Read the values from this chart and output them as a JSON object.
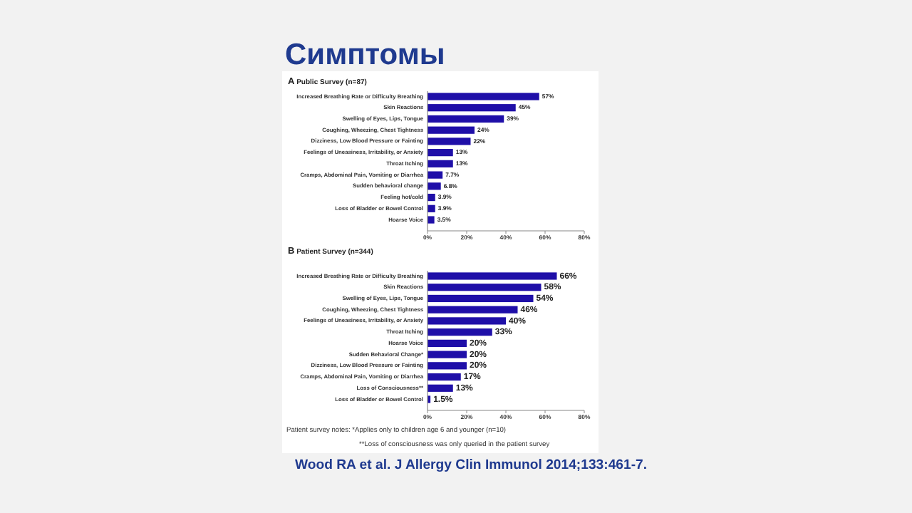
{
  "chart_data": [
    {
      "type": "bar",
      "orientation": "horizontal",
      "title": "Симптомы",
      "subtitle": "A Public Survey (n=87)",
      "color": "#1f0fa8",
      "categories": [
        "Increased Breathing Rate or Difficulty Breathing",
        "Skin Reactions",
        "Swelling of Eyes, Lips, Tongue",
        "Coughing, Wheezing, Chest Tightness",
        "Dizziness, Low Blood Pressure or Fainting",
        "Feelings of Uneasiness, Irritability, or Anxiety",
        "Throat Itching",
        "Cramps, Abdominal Pain, Vomiting or Diarrhea",
        "Sudden behavioral change",
        "Feeling hot/cold",
        "Loss of Bladder or Bowel Control",
        "Hoarse Voice"
      ],
      "values": [
        57,
        45,
        39,
        24,
        22,
        13,
        13,
        7.7,
        6.8,
        3.9,
        3.9,
        3.5
      ],
      "value_labels": [
        "57%",
        "45%",
        "39%",
        "24%",
        "22%",
        "13%",
        "13%",
        "7.7%",
        "6.8%",
        "3.9%",
        "3.9%",
        "3.5%"
      ],
      "xlim": [
        0,
        80
      ],
      "xticks": [
        {
          "value": 0,
          "label": "0%"
        },
        {
          "value": 20,
          "label": "20%"
        },
        {
          "value": 40,
          "label": "40%"
        },
        {
          "value": 60,
          "label": "60%"
        },
        {
          "value": 80,
          "label": "80%"
        }
      ]
    },
    {
      "type": "bar",
      "orientation": "horizontal",
      "subtitle": "B Patient Survey (n=344)",
      "color": "#1f0fa8",
      "categories": [
        "Increased Breathing Rate or Difficulty Breathing",
        "Skin Reactions",
        "Swelling of Eyes, Lips, Tongue",
        "Coughing, Wheezing, Chest Tightness",
        "Feelings of Uneasiness, Irritability, or Anxiety",
        "Throat Itching",
        "Hoarse Voice",
        "Sudden Behavioral Change*",
        "Dizziness, Low Blood Pressure or Fainting",
        "Cramps, Abdominal Pain, Vomiting or Diarrhea",
        "Loss of Consciousness**",
        "Loss of Bladder or Bowel Control"
      ],
      "values": [
        66,
        58,
        54,
        46,
        40,
        33,
        20,
        20,
        20,
        17,
        13,
        1.5
      ],
      "value_labels": [
        "66%",
        "58%",
        "54%",
        "46%",
        "40%",
        "33%",
        "20%",
        "20%",
        "20%",
        "17%",
        "13%",
        "1.5%"
      ],
      "xlim": [
        0,
        80
      ],
      "xticks": [
        {
          "value": 0,
          "label": "0%"
        },
        {
          "value": 20,
          "label": "20%"
        },
        {
          "value": 40,
          "label": "40%"
        },
        {
          "value": 60,
          "label": "60%"
        },
        {
          "value": 80,
          "label": "80%"
        }
      ],
      "annotations": [
        "Patient survey notes:  *Applies only to children age 6 and younger (n=10)",
        "**Loss of consciousness was only queried in the patient survey",
        "Wood RA et al. J Allergy Clin Immunol 2014;133:461-7."
      ]
    }
  ]
}
